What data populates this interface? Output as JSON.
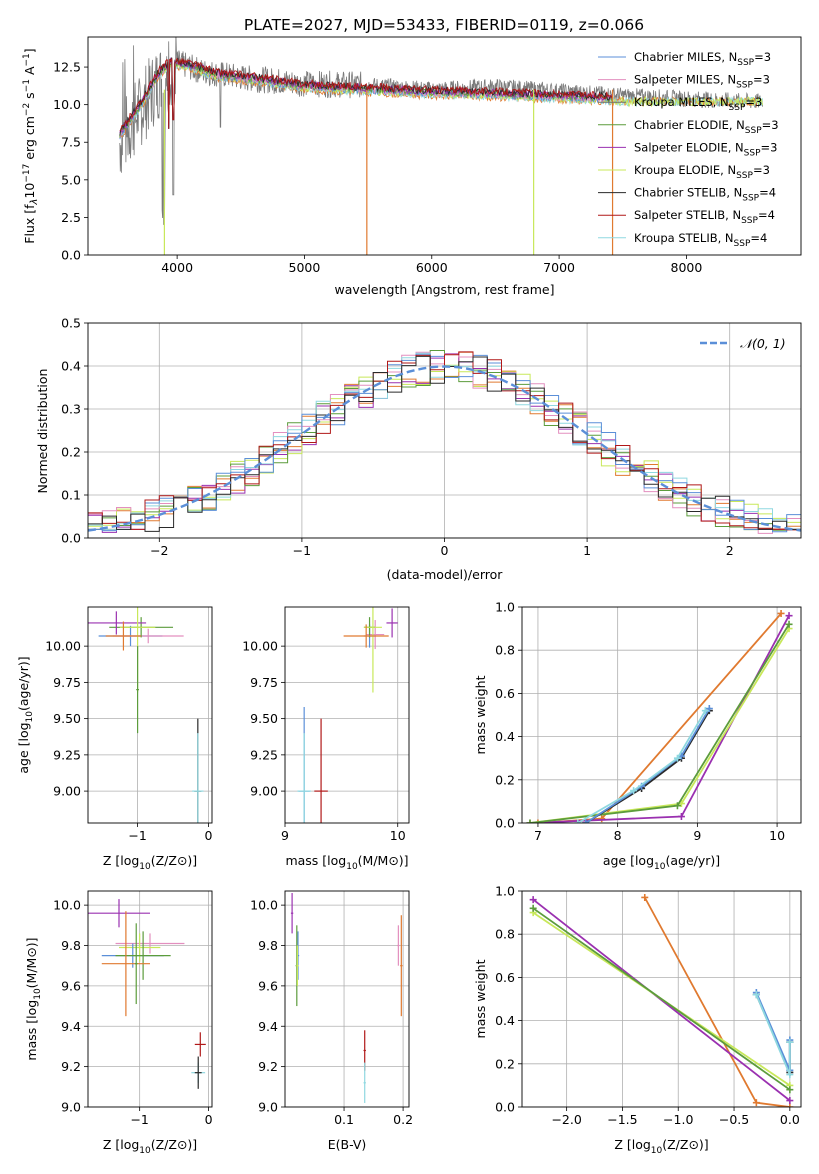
{
  "figure_title": "PLATE=2027, MJD=53433, FIBERID=0119, z=0.066",
  "series_names": [
    "Chabrier MILES",
    "Salpeter MILES",
    "Kroupa MILES",
    "Chabrier ELODIE",
    "Salpeter ELODIE",
    "Kroupa ELODIE",
    "Chabrier STELIB",
    "Salpeter STELIB",
    "Kroupa STELIB"
  ],
  "series_colors": [
    "#5b8fd8",
    "#e38fbf",
    "#6e6e6e",
    "#5c9c3c",
    "#9a30b0",
    "#c8e85a",
    "#2a2a2a",
    "#b01818",
    "#8fd8e0"
  ],
  "chart_data": [
    {
      "id": "spectrum",
      "type": "line",
      "title": "PLATE=2027, MJD=53433, FIBERID=0119, z=0.066",
      "xlabel": "wavelength [Angstrom, rest frame]",
      "ylabel_parts": [
        "Flux [f",
        "λ",
        "10",
        "−17",
        " erg cm",
        "−2",
        " s",
        "−1",
        " A",
        "−1",
        "]"
      ],
      "xlim": [
        3300,
        8900
      ],
      "ylim": [
        0,
        14.5
      ],
      "xticks": [
        "4000",
        "5000",
        "6000",
        "7000",
        "8000"
      ],
      "yticks": [
        "0.0",
        "2.5",
        "5.0",
        "7.5",
        "10.0",
        "12.5"
      ],
      "legend_position": "upper right",
      "legend_entries": [
        {
          "label": "Chabrier MILES, N",
          "sub": "SSP",
          "tail": "=3",
          "color": "#5b8fd8"
        },
        {
          "label": "Salpeter MILES, N",
          "sub": "SSP",
          "tail": "=3",
          "color": "#e38fbf"
        },
        {
          "label": "Kroupa MILES, N",
          "sub": "SSP",
          "tail": "=3",
          "color": "#6e6e6e"
        },
        {
          "label": "Chabrier ELODIE, N",
          "sub": "SSP",
          "tail": "=3",
          "color": "#5c9c3c"
        },
        {
          "label": "Salpeter ELODIE, N",
          "sub": "SSP",
          "tail": "=3",
          "color": "#9a30b0"
        },
        {
          "label": "Kroupa ELODIE, N",
          "sub": "SSP",
          "tail": "=3",
          "color": "#c8e85a"
        },
        {
          "label": "Chabrier STELIB, N",
          "sub": "SSP",
          "tail": "=4",
          "color": "#2a2a2a"
        },
        {
          "label": "Salpeter STELIB, N",
          "sub": "SSP",
          "tail": "=4",
          "color": "#b01818"
        },
        {
          "label": "Kroupa STELIB, N",
          "sub": "SSP",
          "tail": "=4",
          "color": "#8fd8e0"
        }
      ],
      "data_envelope": {
        "x": [
          3550,
          3700,
          3850,
          4000,
          4200,
          4500,
          5000,
          5500,
          6000,
          6500,
          7000,
          7500,
          8000,
          8500
        ],
        "y": [
          7.5,
          9.5,
          11.5,
          12.8,
          12.2,
          11.8,
          11.4,
          11.3,
          11.0,
          11.2,
          10.9,
          10.6,
          10.4,
          10.2
        ]
      },
      "model_envelope": {
        "x": [
          3550,
          3700,
          3850,
          3950,
          4100,
          4300,
          4600,
          5000,
          5500,
          6000,
          6500,
          7000,
          7400
        ],
        "y": [
          8.0,
          9.8,
          12.0,
          12.8,
          12.6,
          12.0,
          11.7,
          11.2,
          11.0,
          10.8,
          10.7,
          10.5,
          10.4
        ]
      },
      "notable_drops_angstrom": [
        3900,
        5490,
        6800,
        7420
      ]
    },
    {
      "id": "residuals",
      "type": "histogram",
      "xlabel": "(data-model)/error",
      "ylabel": "Normed distribution",
      "xlim": [
        -2.5,
        2.5
      ],
      "ylim": [
        0,
        0.5
      ],
      "xticks": [
        "−2",
        "−1",
        "0",
        "1",
        "2"
      ],
      "yticks": [
        "0.0",
        "0.1",
        "0.2",
        "0.3",
        "0.4",
        "0.5"
      ],
      "grid": true,
      "legend_position": "upper right",
      "reference_curve": {
        "label": "𝒩(0, 1)",
        "color": "#5b8fd8",
        "style": "dashed",
        "mu": 0,
        "sigma": 1
      },
      "bin_width": 0.1,
      "base_density": "N(0,1) with per-series noise ±0.04"
    },
    {
      "id": "age_vs_Z",
      "type": "errorbar",
      "xlabel_text": "Z [log",
      "xlabel_sub": "10",
      "xlabel_tail": "(Z/Z⊙)]",
      "ylabel_text": "age  [log",
      "ylabel_sub": "10",
      "ylabel_tail": "(age/yr)]",
      "xlim": [
        -1.7,
        0.05
      ],
      "ylim": [
        8.78,
        10.27
      ],
      "xticks": [
        "−1",
        "0"
      ],
      "yticks": [
        "9.00",
        "9.25",
        "9.50",
        "9.75",
        "10.00"
      ],
      "grid": true,
      "points": [
        {
          "x": -1.1,
          "y": 10.07,
          "xerr": 0.45,
          "yerr": 0.07,
          "color": "#5b8fd8"
        },
        {
          "x": -0.85,
          "y": 10.07,
          "xerr": 0.5,
          "yerr": 0.05,
          "color": "#e38fbf"
        },
        {
          "x": -0.95,
          "y": 10.13,
          "xerr": 0.45,
          "yerr": 0.07,
          "color": "#5c9c3c"
        },
        {
          "x": -1.3,
          "y": 10.16,
          "xerr": 0.42,
          "yerr": 0.08,
          "color": "#9a30b0"
        },
        {
          "x": -1.0,
          "y": 10.13,
          "xerr": 0.25,
          "yerr": 0.45,
          "color": "#c8e85a"
        },
        {
          "x": -1.2,
          "y": 10.07,
          "xerr": 0.25,
          "yerr": 0.1,
          "color": "#e07a30"
        },
        {
          "x": -0.15,
          "y": 9.0,
          "xerr": 0.05,
          "yerr": 0.5,
          "color": "#2a2a2a"
        },
        {
          "x": -0.15,
          "y": 9.0,
          "xerr": 0.08,
          "yerr": 0.4,
          "color": "#8fd8e0"
        },
        {
          "x": -1.0,
          "y": 9.7,
          "xerr": 0.02,
          "yerr": 0.3,
          "color": "#5c9c3c"
        }
      ]
    },
    {
      "id": "age_vs_mass",
      "type": "errorbar",
      "xlabel_text": "mass [log",
      "xlabel_sub": "10",
      "xlabel_tail": "(M/M⊙)]",
      "xlim": [
        9.0,
        10.1
      ],
      "ylim": [
        8.78,
        10.27
      ],
      "xticks": [
        "9",
        "10"
      ],
      "yticks": [
        "9.00",
        "9.25",
        "9.50",
        "9.75",
        "10.00"
      ],
      "grid": true,
      "points": [
        {
          "x": 9.75,
          "y": 10.07,
          "xerr": 0.05,
          "yerr": 0.08,
          "color": "#5b8fd8"
        },
        {
          "x": 9.8,
          "y": 10.08,
          "xerr": 0.08,
          "yerr": 0.1,
          "color": "#e38fbf"
        },
        {
          "x": 9.75,
          "y": 10.13,
          "xerr": 0.05,
          "yerr": 0.07,
          "color": "#5c9c3c"
        },
        {
          "x": 9.95,
          "y": 10.16,
          "xerr": 0.05,
          "yerr": 0.1,
          "color": "#9a30b0"
        },
        {
          "x": 9.78,
          "y": 10.13,
          "xerr": 0.08,
          "yerr": 0.45,
          "color": "#c8e85a"
        },
        {
          "x": 9.72,
          "y": 10.07,
          "xerr": 0.2,
          "yerr": 0.08,
          "color": "#e07a30"
        },
        {
          "x": 9.17,
          "y": 9.0,
          "xerr": 0.05,
          "yerr": 0.58,
          "color": "#5b8fd8"
        },
        {
          "x": 9.32,
          "y": 9.0,
          "xerr": 0.06,
          "yerr": 0.5,
          "color": "#b01818"
        },
        {
          "x": 9.17,
          "y": 9.0,
          "xerr": 0.06,
          "yerr": 0.4,
          "color": "#8fd8e0"
        }
      ]
    },
    {
      "id": "weight_vs_age",
      "type": "line",
      "xlabel_text": "age  [log",
      "xlabel_sub": "10",
      "xlabel_tail": "(age/yr)]",
      "ylabel": "mass weight",
      "xlim": [
        6.8,
        10.3
      ],
      "ylim": [
        0,
        1
      ],
      "xticks": [
        "7",
        "8",
        "9",
        "10"
      ],
      "yticks": [
        "0.0",
        "0.2",
        "0.4",
        "0.6",
        "0.8",
        "1.0"
      ],
      "grid": true,
      "series": [
        {
          "color": "#e07a30",
          "x": [
            7.0,
            7.8,
            10.05
          ],
          "y": [
            0.0,
            0.02,
            0.97
          ]
        },
        {
          "color": "#9a30b0",
          "x": [
            6.9,
            8.8,
            10.15
          ],
          "y": [
            0.0,
            0.03,
            0.96
          ]
        },
        {
          "color": "#c8e85a",
          "x": [
            6.9,
            8.8,
            10.15
          ],
          "y": [
            0.0,
            0.09,
            0.9
          ]
        },
        {
          "color": "#5c9c3c",
          "x": [
            6.9,
            8.75,
            10.15
          ],
          "y": [
            0.0,
            0.08,
            0.92
          ]
        },
        {
          "color": "#2a2a2a",
          "x": [
            7.6,
            8.3,
            8.8,
            9.15
          ],
          "y": [
            0.0,
            0.16,
            0.3,
            0.52
          ]
        },
        {
          "color": "#5b8fd8",
          "x": [
            7.6,
            8.3,
            8.8,
            9.15
          ],
          "y": [
            0.0,
            0.17,
            0.31,
            0.53
          ]
        },
        {
          "color": "#8fd8e0",
          "x": [
            7.5,
            8.2,
            8.75,
            9.1
          ],
          "y": [
            0.0,
            0.15,
            0.3,
            0.52
          ]
        }
      ]
    },
    {
      "id": "mass_vs_Z",
      "type": "errorbar",
      "xlabel_text": "Z [log",
      "xlabel_sub": "10",
      "xlabel_tail": "(Z/Z⊙)]",
      "ylabel_text": "mass [log",
      "ylabel_sub": "10",
      "ylabel_tail": "(M/M⊙)]",
      "xlim": [
        -1.75,
        0.05
      ],
      "ylim": [
        9.0,
        10.07
      ],
      "xticks": [
        "−1",
        "0"
      ],
      "yticks": [
        "9.0",
        "9.2",
        "9.4",
        "9.6",
        "9.8",
        "10.0"
      ],
      "grid": true,
      "points": [
        {
          "x": -1.3,
          "y": 9.96,
          "xerr": 0.45,
          "yerr": 0.07,
          "color": "#9a30b0"
        },
        {
          "x": -0.85,
          "y": 9.81,
          "xerr": 0.5,
          "yerr": 0.05,
          "color": "#e38fbf"
        },
        {
          "x": -1.0,
          "y": 9.79,
          "xerr": 0.3,
          "yerr": 0.07,
          "color": "#c8e85a"
        },
        {
          "x": -1.1,
          "y": 9.75,
          "xerr": 0.45,
          "yerr": 0.06,
          "color": "#5b8fd8"
        },
        {
          "x": -0.95,
          "y": 9.75,
          "xerr": 0.4,
          "yerr": 0.12,
          "color": "#5c9c3c"
        },
        {
          "x": -1.2,
          "y": 9.71,
          "xerr": 0.35,
          "yerr": 0.26,
          "color": "#e07a30"
        },
        {
          "x": -1.05,
          "y": 9.71,
          "xerr": 0.02,
          "yerr": 0.2,
          "color": "#5c9c3c"
        },
        {
          "x": -0.12,
          "y": 9.31,
          "xerr": 0.08,
          "yerr": 0.06,
          "color": "#b01818"
        },
        {
          "x": -0.15,
          "y": 9.17,
          "xerr": 0.1,
          "yerr": 0.05,
          "color": "#8fd8e0"
        },
        {
          "x": -0.15,
          "y": 9.17,
          "xerr": 0.05,
          "yerr": 0.08,
          "color": "#2a2a2a"
        }
      ]
    },
    {
      "id": "mass_vs_ebv",
      "type": "errorbar",
      "xlabel": "E(B-V)",
      "xlim": [
        0.0,
        0.21
      ],
      "ylim": [
        9.0,
        10.07
      ],
      "xticks": [
        "0.1",
        "0.2"
      ],
      "yticks": [
        "9.0",
        "9.2",
        "9.4",
        "9.6",
        "9.8",
        "10.0"
      ],
      "grid": true,
      "points": [
        {
          "x": 0.012,
          "y": 9.96,
          "xerr": 0.002,
          "yerr": 0.1,
          "color": "#9a30b0"
        },
        {
          "x": 0.022,
          "y": 9.75,
          "xerr": 0.002,
          "yerr": 0.12,
          "color": "#5b8fd8"
        },
        {
          "x": 0.02,
          "y": 9.7,
          "xerr": 0.002,
          "yerr": 0.2,
          "color": "#5c9c3c"
        },
        {
          "x": 0.021,
          "y": 9.7,
          "xerr": 0.002,
          "yerr": 0.1,
          "color": "#c8e85a"
        },
        {
          "x": 0.192,
          "y": 9.8,
          "xerr": 0.002,
          "yerr": 0.1,
          "color": "#e38fbf"
        },
        {
          "x": 0.197,
          "y": 9.7,
          "xerr": 0.002,
          "yerr": 0.25,
          "color": "#e07a30"
        },
        {
          "x": 0.135,
          "y": 9.28,
          "xerr": 0.002,
          "yerr": 0.1,
          "color": "#b01818"
        },
        {
          "x": 0.135,
          "y": 9.12,
          "xerr": 0.002,
          "yerr": 0.1,
          "color": "#8fd8e0"
        }
      ]
    },
    {
      "id": "weight_vs_Z",
      "type": "line",
      "xlabel_text": "Z [log",
      "xlabel_sub": "10",
      "xlabel_tail": "(Z/Z⊙)]",
      "ylabel": "mass weight",
      "xlim": [
        -2.4,
        0.1
      ],
      "ylim": [
        0,
        1
      ],
      "xticks": [
        "−2.0",
        "−1.5",
        "−1.0",
        "−0.5",
        "0.0"
      ],
      "yticks": [
        "0.0",
        "0.2",
        "0.4",
        "0.6",
        "0.8",
        "1.0"
      ],
      "grid": true,
      "series": [
        {
          "color": "#e07a30",
          "x": [
            -1.3,
            -0.3,
            0.0
          ],
          "y": [
            0.97,
            0.02,
            0.0
          ]
        },
        {
          "color": "#9a30b0",
          "x": [
            -2.3,
            0.0
          ],
          "y": [
            0.96,
            0.03
          ]
        },
        {
          "color": "#c8e85a",
          "x": [
            -2.3,
            0.0
          ],
          "y": [
            0.9,
            0.1
          ]
        },
        {
          "color": "#5c9c3c",
          "x": [
            -2.3,
            0.0
          ],
          "y": [
            0.92,
            0.08
          ]
        },
        {
          "color": "#2a2a2a",
          "x": [
            -0.3,
            0.0,
            0.0
          ],
          "y": [
            0.52,
            0.16,
            0.3
          ]
        },
        {
          "color": "#5b8fd8",
          "x": [
            -0.3,
            0.0,
            0.0
          ],
          "y": [
            0.53,
            0.17,
            0.31
          ]
        },
        {
          "color": "#8fd8e0",
          "x": [
            -0.3,
            0.0,
            0.0
          ],
          "y": [
            0.52,
            0.15,
            0.3
          ]
        }
      ]
    }
  ]
}
